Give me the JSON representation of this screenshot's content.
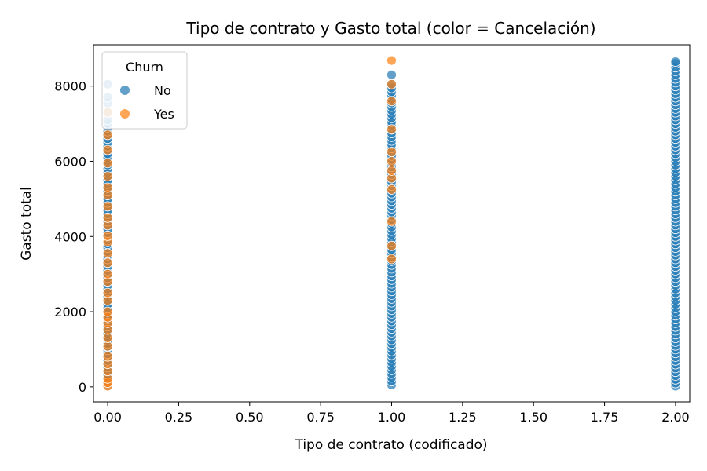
{
  "chart_data": {
    "type": "scatter",
    "title": "Tipo de contrato y Gasto total (color = Cancelación)",
    "xlabel": "Tipo de contrato (codificado)",
    "ylabel": "Gasto total",
    "xlim": [
      -0.05,
      2.05
    ],
    "ylim": [
      -400,
      9100
    ],
    "xticks": [
      "0.00",
      "0.25",
      "0.50",
      "0.75",
      "1.00",
      "1.25",
      "1.50",
      "1.75",
      "2.00"
    ],
    "yticks": [
      "0",
      "2000",
      "4000",
      "6000",
      "8000"
    ],
    "grid": false,
    "legend": {
      "title": "Churn",
      "position": "top-left"
    },
    "series": [
      {
        "name": "No",
        "color": "#1f77b4",
        "points": [
          [
            0,
            30
          ],
          [
            0,
            80
          ],
          [
            0,
            150
          ],
          [
            0,
            240
          ],
          [
            0,
            330
          ],
          [
            0,
            420
          ],
          [
            0,
            520
          ],
          [
            0,
            610
          ],
          [
            0,
            700
          ],
          [
            0,
            800
          ],
          [
            0,
            880
          ],
          [
            0,
            980
          ],
          [
            0,
            1060
          ],
          [
            0,
            1150
          ],
          [
            0,
            1240
          ],
          [
            0,
            1330
          ],
          [
            0,
            1420
          ],
          [
            0,
            1520
          ],
          [
            0,
            1610
          ],
          [
            0,
            1700
          ],
          [
            0,
            1800
          ],
          [
            0,
            1900
          ],
          [
            0,
            2000
          ],
          [
            0,
            2100
          ],
          [
            0,
            2200
          ],
          [
            0,
            2290
          ],
          [
            0,
            2400
          ],
          [
            0,
            2500
          ],
          [
            0,
            2600
          ],
          [
            0,
            2700
          ],
          [
            0,
            2800
          ],
          [
            0,
            2900
          ],
          [
            0,
            3000
          ],
          [
            0,
            3100
          ],
          [
            0,
            3200
          ],
          [
            0,
            3300
          ],
          [
            0,
            3400
          ],
          [
            0,
            3500
          ],
          [
            0,
            3600
          ],
          [
            0,
            3700
          ],
          [
            0,
            3800
          ],
          [
            0,
            3900
          ],
          [
            0,
            4000
          ],
          [
            0,
            4100
          ],
          [
            0,
            4200
          ],
          [
            0,
            4300
          ],
          [
            0,
            4400
          ],
          [
            0,
            4500
          ],
          [
            0,
            4600
          ],
          [
            0,
            4700
          ],
          [
            0,
            4800
          ],
          [
            0,
            4900
          ],
          [
            0,
            5000
          ],
          [
            0,
            5100
          ],
          [
            0,
            5200
          ],
          [
            0,
            5300
          ],
          [
            0,
            5400
          ],
          [
            0,
            5500
          ],
          [
            0,
            5600
          ],
          [
            0,
            5700
          ],
          [
            0,
            5800
          ],
          [
            0,
            5900
          ],
          [
            0,
            6000
          ],
          [
            0,
            6100
          ],
          [
            0,
            6200
          ],
          [
            0,
            6300
          ],
          [
            0,
            6400
          ],
          [
            0,
            6500
          ],
          [
            0,
            6600
          ],
          [
            0,
            6700
          ],
          [
            0,
            6800
          ],
          [
            0,
            6900
          ],
          [
            0,
            7000
          ],
          [
            0,
            7100
          ],
          [
            0,
            7300
          ],
          [
            0,
            7550
          ],
          [
            0,
            7700
          ],
          [
            0,
            8050
          ],
          [
            1,
            50
          ],
          [
            1,
            150
          ],
          [
            1,
            250
          ],
          [
            1,
            350
          ],
          [
            1,
            450
          ],
          [
            1,
            550
          ],
          [
            1,
            650
          ],
          [
            1,
            750
          ],
          [
            1,
            850
          ],
          [
            1,
            950
          ],
          [
            1,
            1050
          ],
          [
            1,
            1150
          ],
          [
            1,
            1250
          ],
          [
            1,
            1350
          ],
          [
            1,
            1450
          ],
          [
            1,
            1550
          ],
          [
            1,
            1650
          ],
          [
            1,
            1750
          ],
          [
            1,
            1850
          ],
          [
            1,
            1950
          ],
          [
            1,
            2050
          ],
          [
            1,
            2150
          ],
          [
            1,
            2250
          ],
          [
            1,
            2350
          ],
          [
            1,
            2450
          ],
          [
            1,
            2550
          ],
          [
            1,
            2650
          ],
          [
            1,
            2750
          ],
          [
            1,
            2850
          ],
          [
            1,
            2950
          ],
          [
            1,
            3050
          ],
          [
            1,
            3150
          ],
          [
            1,
            3250
          ],
          [
            1,
            3350
          ],
          [
            1,
            3450
          ],
          [
            1,
            3550
          ],
          [
            1,
            3650
          ],
          [
            1,
            3750
          ],
          [
            1,
            3850
          ],
          [
            1,
            3950
          ],
          [
            1,
            4050
          ],
          [
            1,
            4150
          ],
          [
            1,
            4250
          ],
          [
            1,
            4350
          ],
          [
            1,
            4450
          ],
          [
            1,
            4550
          ],
          [
            1,
            4650
          ],
          [
            1,
            4750
          ],
          [
            1,
            4850
          ],
          [
            1,
            4950
          ],
          [
            1,
            5050
          ],
          [
            1,
            5150
          ],
          [
            1,
            5250
          ],
          [
            1,
            5350
          ],
          [
            1,
            5450
          ],
          [
            1,
            5550
          ],
          [
            1,
            5650
          ],
          [
            1,
            5750
          ],
          [
            1,
            5850
          ],
          [
            1,
            5950
          ],
          [
            1,
            6050
          ],
          [
            1,
            6150
          ],
          [
            1,
            6250
          ],
          [
            1,
            6350
          ],
          [
            1,
            6450
          ],
          [
            1,
            6550
          ],
          [
            1,
            6650
          ],
          [
            1,
            6750
          ],
          [
            1,
            6850
          ],
          [
            1,
            6950
          ],
          [
            1,
            7050
          ],
          [
            1,
            7150
          ],
          [
            1,
            7250
          ],
          [
            1,
            7350
          ],
          [
            1,
            7450
          ],
          [
            1,
            7550
          ],
          [
            1,
            7650
          ],
          [
            1,
            7750
          ],
          [
            1,
            7850
          ],
          [
            1,
            7950
          ],
          [
            1,
            8050
          ],
          [
            1,
            8300
          ],
          [
            2,
            20
          ],
          [
            2,
            100
          ],
          [
            2,
            200
          ],
          [
            2,
            300
          ],
          [
            2,
            400
          ],
          [
            2,
            500
          ],
          [
            2,
            600
          ],
          [
            2,
            700
          ],
          [
            2,
            800
          ],
          [
            2,
            900
          ],
          [
            2,
            1000
          ],
          [
            2,
            1100
          ],
          [
            2,
            1200
          ],
          [
            2,
            1300
          ],
          [
            2,
            1400
          ],
          [
            2,
            1500
          ],
          [
            2,
            1600
          ],
          [
            2,
            1700
          ],
          [
            2,
            1800
          ],
          [
            2,
            1900
          ],
          [
            2,
            2000
          ],
          [
            2,
            2100
          ],
          [
            2,
            2200
          ],
          [
            2,
            2300
          ],
          [
            2,
            2400
          ],
          [
            2,
            2500
          ],
          [
            2,
            2600
          ],
          [
            2,
            2700
          ],
          [
            2,
            2800
          ],
          [
            2,
            2900
          ],
          [
            2,
            3000
          ],
          [
            2,
            3100
          ],
          [
            2,
            3200
          ],
          [
            2,
            3300
          ],
          [
            2,
            3400
          ],
          [
            2,
            3500
          ],
          [
            2,
            3600
          ],
          [
            2,
            3700
          ],
          [
            2,
            3800
          ],
          [
            2,
            3900
          ],
          [
            2,
            4000
          ],
          [
            2,
            4100
          ],
          [
            2,
            4200
          ],
          [
            2,
            4300
          ],
          [
            2,
            4400
          ],
          [
            2,
            4500
          ],
          [
            2,
            4600
          ],
          [
            2,
            4700
          ],
          [
            2,
            4800
          ],
          [
            2,
            4900
          ],
          [
            2,
            5000
          ],
          [
            2,
            5100
          ],
          [
            2,
            5200
          ],
          [
            2,
            5300
          ],
          [
            2,
            5400
          ],
          [
            2,
            5500
          ],
          [
            2,
            5600
          ],
          [
            2,
            5700
          ],
          [
            2,
            5800
          ],
          [
            2,
            5900
          ],
          [
            2,
            6000
          ],
          [
            2,
            6100
          ],
          [
            2,
            6200
          ],
          [
            2,
            6300
          ],
          [
            2,
            6400
          ],
          [
            2,
            6500
          ],
          [
            2,
            6600
          ],
          [
            2,
            6700
          ],
          [
            2,
            6800
          ],
          [
            2,
            6900
          ],
          [
            2,
            7000
          ],
          [
            2,
            7100
          ],
          [
            2,
            7200
          ],
          [
            2,
            7300
          ],
          [
            2,
            7400
          ],
          [
            2,
            7500
          ],
          [
            2,
            7600
          ],
          [
            2,
            7700
          ],
          [
            2,
            7800
          ],
          [
            2,
            7900
          ],
          [
            2,
            8000
          ],
          [
            2,
            8100
          ],
          [
            2,
            8200
          ],
          [
            2,
            8300
          ],
          [
            2,
            8400
          ],
          [
            2,
            8500
          ],
          [
            2,
            8600
          ],
          [
            2,
            8650
          ]
        ]
      },
      {
        "name": "Yes",
        "color": "#ff7f0e",
        "points": [
          [
            0,
            20
          ],
          [
            0,
            110
          ],
          [
            0,
            220
          ],
          [
            0,
            420
          ],
          [
            0,
            610
          ],
          [
            0,
            810
          ],
          [
            0,
            1080
          ],
          [
            0,
            1300
          ],
          [
            0,
            1520
          ],
          [
            0,
            1700
          ],
          [
            0,
            1850
          ],
          [
            0,
            2000
          ],
          [
            0,
            2300
          ],
          [
            0,
            2500
          ],
          [
            0,
            2800
          ],
          [
            0,
            3000
          ],
          [
            0,
            3300
          ],
          [
            0,
            3550
          ],
          [
            0,
            3850
          ],
          [
            0,
            4020
          ],
          [
            0,
            4300
          ],
          [
            0,
            4500
          ],
          [
            0,
            4800
          ],
          [
            0,
            5100
          ],
          [
            0,
            5300
          ],
          [
            0,
            5600
          ],
          [
            0,
            5950
          ],
          [
            0,
            6300
          ],
          [
            0,
            6700
          ],
          [
            0,
            7300
          ],
          [
            1,
            3400
          ],
          [
            1,
            3750
          ],
          [
            1,
            4400
          ],
          [
            1,
            5250
          ],
          [
            1,
            5550
          ],
          [
            1,
            5750
          ],
          [
            1,
            6000
          ],
          [
            1,
            6250
          ],
          [
            1,
            6850
          ],
          [
            1,
            7600
          ],
          [
            1,
            8050
          ],
          [
            1,
            8680
          ]
        ]
      }
    ]
  }
}
